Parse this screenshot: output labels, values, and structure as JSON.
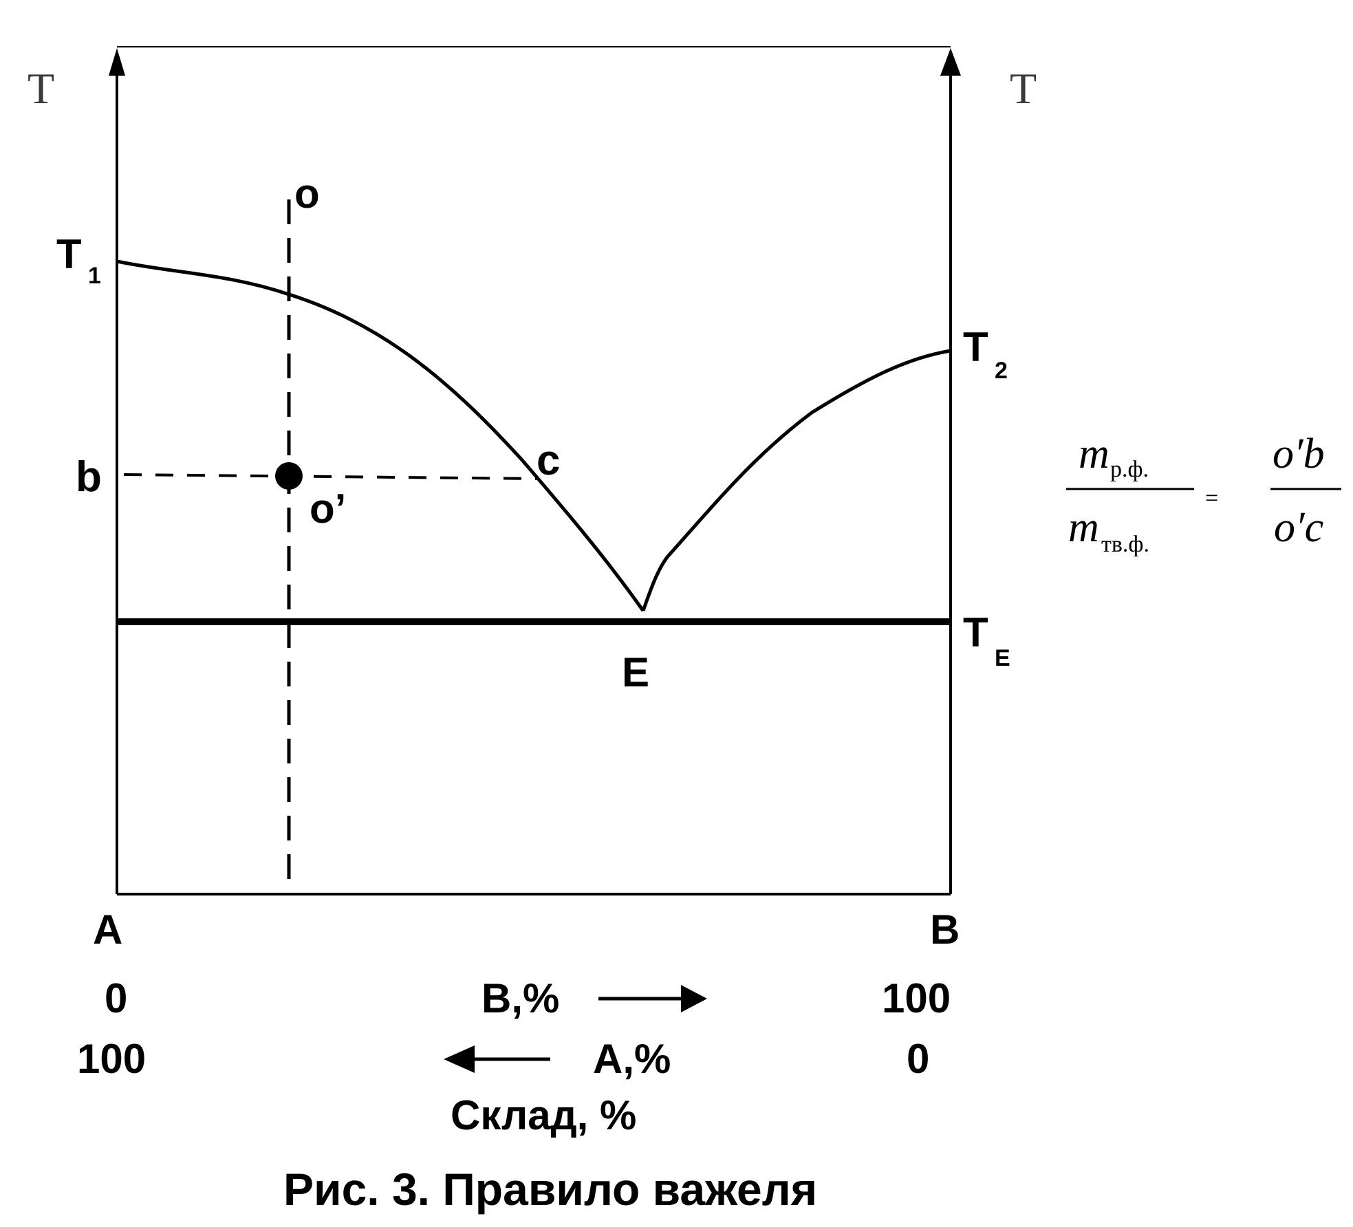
{
  "axes": {
    "left_axis_label": "T",
    "right_axis_label": "T"
  },
  "points": {
    "t1": {
      "main": "T",
      "sub": "1"
    },
    "t2": {
      "main": "T",
      "sub": "2"
    },
    "te": {
      "main": "T",
      "sub": "E"
    },
    "o": "o",
    "o_prime": "o’",
    "b": "b",
    "c": "c",
    "e": "E"
  },
  "components": {
    "left": "A",
    "right": "B"
  },
  "scale": {
    "b_percent_label": "B,%",
    "a_percent_label": "A,%",
    "left_b_value": "0",
    "right_b_value": "100",
    "left_a_value": "100",
    "right_a_value": "0",
    "composition_label": "Склад, %"
  },
  "formula": {
    "num_left": "m",
    "num_left_sub": "р.ф.",
    "den_left": "m",
    "den_left_sub": "тв.ф.",
    "equals": "=",
    "num_right": "o′b",
    "den_right": "o′c"
  },
  "caption": "Рис. 3. Правило важеля"
}
